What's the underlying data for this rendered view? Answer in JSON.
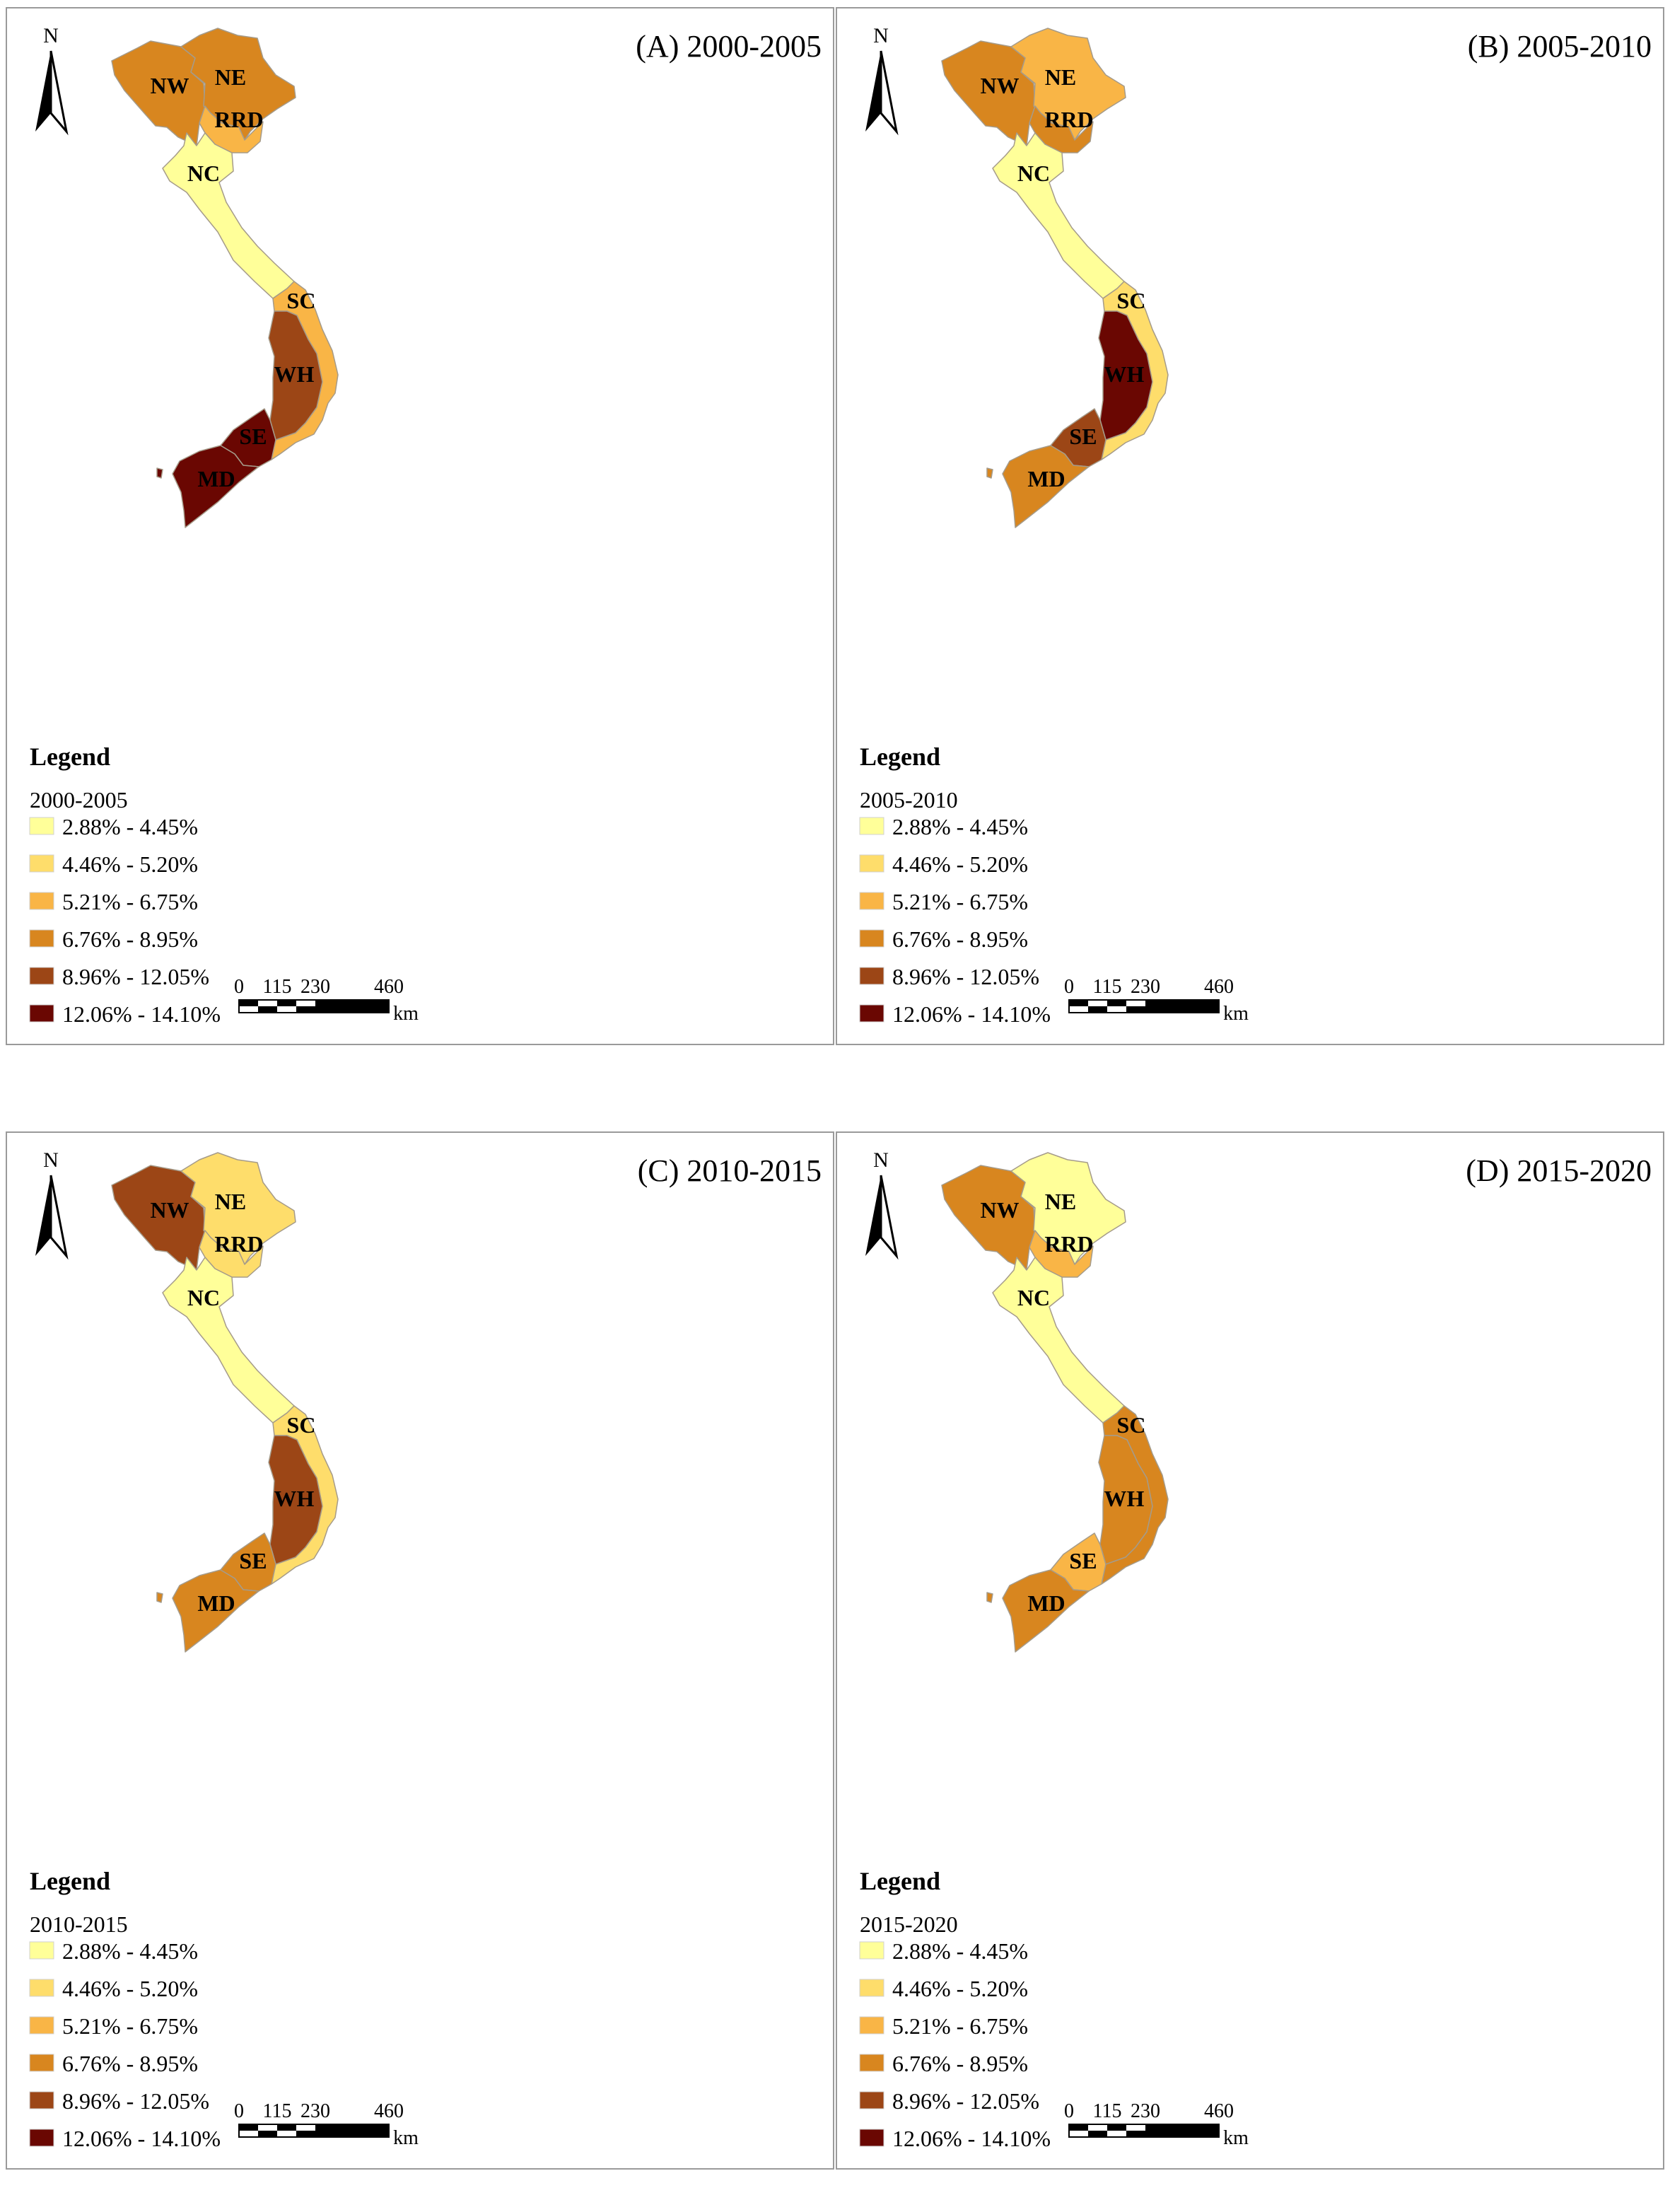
{
  "legend": {
    "title": "Legend",
    "classes": [
      {
        "label": "2.88% - 4.45%",
        "color": "#ffff99"
      },
      {
        "label": "4.46% - 5.20%",
        "color": "#fedd6b"
      },
      {
        "label": "5.21% - 6.75%",
        "color": "#f9b546"
      },
      {
        "label": "6.76% - 8.95%",
        "color": "#d8861f"
      },
      {
        "label": "8.96% - 12.05%",
        "color": "#9c4616"
      },
      {
        "label": "12.06% - 14.10%",
        "color": "#6a0702"
      }
    ]
  },
  "north_label": "N",
  "scale_bar": {
    "ticks": [
      "0",
      "115",
      "230",
      "460"
    ],
    "unit": "km"
  },
  "panels": [
    {
      "title": "(A) 2000-2005",
      "period": "2000-2005",
      "regions": [
        {
          "code": "NW",
          "class": 3
        },
        {
          "code": "NE",
          "class": 3
        },
        {
          "code": "RRD",
          "class": 2
        },
        {
          "code": "NC",
          "class": 0
        },
        {
          "code": "SC",
          "class": 2
        },
        {
          "code": "WH",
          "class": 4
        },
        {
          "code": "SE",
          "class": 5
        },
        {
          "code": "MD",
          "class": 5
        }
      ]
    },
    {
      "title": "(B) 2005-2010",
      "period": "2005-2010",
      "regions": [
        {
          "code": "NW",
          "class": 3
        },
        {
          "code": "NE",
          "class": 2
        },
        {
          "code": "RRD",
          "class": 3
        },
        {
          "code": "NC",
          "class": 0
        },
        {
          "code": "SC",
          "class": 1
        },
        {
          "code": "WH",
          "class": 5
        },
        {
          "code": "SE",
          "class": 4
        },
        {
          "code": "MD",
          "class": 3
        }
      ]
    },
    {
      "title": "(C) 2010-2015",
      "period": "2010-2015",
      "regions": [
        {
          "code": "NW",
          "class": 4
        },
        {
          "code": "NE",
          "class": 1
        },
        {
          "code": "RRD",
          "class": 1
        },
        {
          "code": "NC",
          "class": 0
        },
        {
          "code": "SC",
          "class": 1
        },
        {
          "code": "WH",
          "class": 4
        },
        {
          "code": "SE",
          "class": 3
        },
        {
          "code": "MD",
          "class": 3
        }
      ]
    },
    {
      "title": "(D) 2015-2020",
      "period": "2015-2020",
      "regions": [
        {
          "code": "NW",
          "class": 3
        },
        {
          "code": "NE",
          "class": 0
        },
        {
          "code": "RRD",
          "class": 2
        },
        {
          "code": "NC",
          "class": 0
        },
        {
          "code": "SC",
          "class": 3
        },
        {
          "code": "WH",
          "class": 3
        },
        {
          "code": "SE",
          "class": 2
        },
        {
          "code": "MD",
          "class": 3
        }
      ]
    }
  ]
}
